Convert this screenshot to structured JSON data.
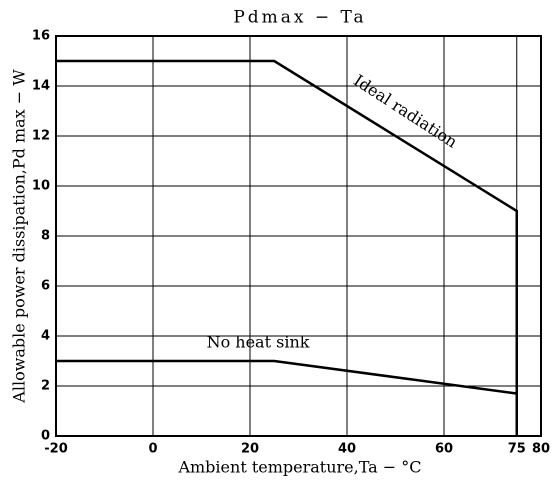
{
  "chart_data": {
    "type": "line",
    "title": "Pdmax − Ta",
    "x_label": "Ambient temperature,Ta − °C",
    "y_label": "Allowable power dissipation,Pd max − W",
    "xlim": [
      -20,
      80
    ],
    "xticks": [
      -20,
      0,
      20,
      40,
      60,
      75,
      80
    ],
    "ylim": [
      0,
      16
    ],
    "yticks": [
      0,
      2,
      4,
      6,
      8,
      10,
      12,
      14,
      16
    ],
    "grid": true,
    "series": [
      {
        "name": "Ideal radiation",
        "color": "#000000",
        "x": [
          -20,
          25,
          75,
          75
        ],
        "values": [
          15,
          15,
          9,
          0
        ]
      },
      {
        "name": "No heat sink",
        "color": "#000000",
        "x": [
          -20,
          25,
          75
        ],
        "values": [
          3,
          3,
          1.7
        ]
      }
    ]
  }
}
